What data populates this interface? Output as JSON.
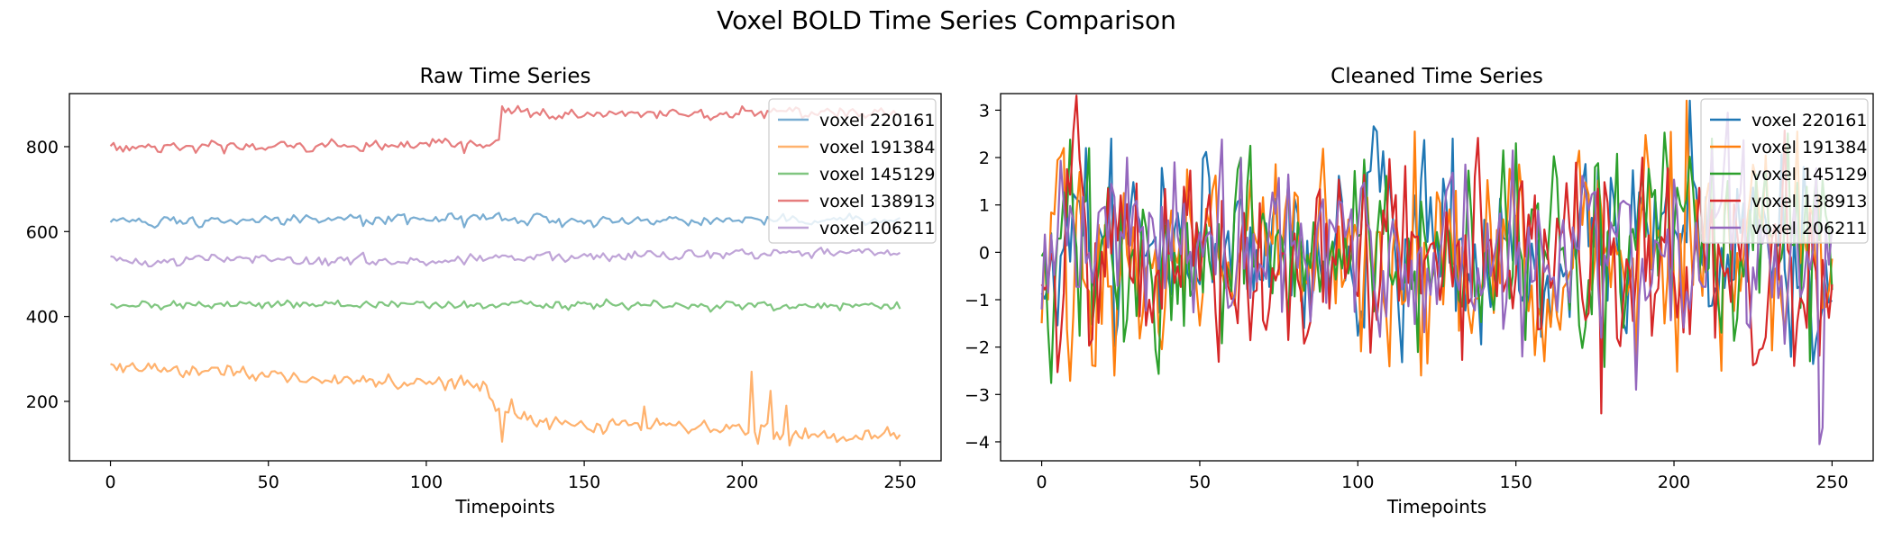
{
  "figure": {
    "title": "Voxel BOLD Time Series Comparison"
  },
  "chart_data": [
    {
      "type": "line",
      "title": "Raw Time Series",
      "xlabel": "Timepoints",
      "ylabel": "",
      "xlim": [
        -13,
        263
      ],
      "ylim": [
        60,
        925
      ],
      "xticks": [
        0,
        50,
        100,
        150,
        200,
        250
      ],
      "yticks": [
        200,
        400,
        600,
        800
      ],
      "line_alpha": 0.6,
      "legend_position": "top-right",
      "series": [
        {
          "name": "voxel 220161",
          "color": "#1f77b4",
          "x_range": [
            0,
            250
          ],
          "trend": [
            [
              0,
              625
            ],
            [
              50,
              625
            ],
            [
              100,
              627
            ],
            [
              120,
              632
            ],
            [
              150,
              625
            ],
            [
              200,
              628
            ],
            [
              250,
              625
            ]
          ],
          "noise": 6,
          "spikes": [
            [
              112,
              610
            ],
            [
              122,
              640
            ],
            [
              79,
              638
            ]
          ]
        },
        {
          "name": "voxel 191384",
          "color": "#ff7f0e",
          "x_range": [
            0,
            250
          ],
          "trend": [
            [
              0,
              280
            ],
            [
              40,
              270
            ],
            [
              55,
              258
            ],
            [
              80,
              250
            ],
            [
              112,
              245
            ],
            [
              118,
              232
            ],
            [
              124,
              168
            ],
            [
              150,
              140
            ],
            [
              170,
              145
            ],
            [
              185,
              140
            ],
            [
              200,
              132
            ],
            [
              220,
              125
            ],
            [
              250,
              118
            ]
          ],
          "noise": 9,
          "spikes": [
            [
              124,
              105
            ],
            [
              127,
              205
            ],
            [
              169,
              188
            ],
            [
              203,
              270
            ],
            [
              205,
              100
            ],
            [
              209,
              225
            ],
            [
              214,
              190
            ],
            [
              215,
              96
            ],
            [
              249,
              112
            ]
          ]
        },
        {
          "name": "voxel 145129",
          "color": "#2ca02c",
          "x_range": [
            0,
            250
          ],
          "trend": [
            [
              0,
              428
            ],
            [
              250,
              425
            ]
          ],
          "noise": 5,
          "spikes": [
            [
              250,
              418
            ]
          ]
        },
        {
          "name": "voxel 138913",
          "color": "#d62728",
          "x_range": [
            0,
            250
          ],
          "trend": [
            [
              0,
              803
            ],
            [
              50,
              800
            ],
            [
              100,
              804
            ],
            [
              123,
              808
            ],
            [
              125,
              880
            ],
            [
              150,
              875
            ],
            [
              200,
              880
            ],
            [
              250,
              882
            ]
          ],
          "noise": 6,
          "spikes": [
            [
              112,
              785
            ],
            [
              124,
              895
            ],
            [
              126,
              890
            ]
          ]
        },
        {
          "name": "voxel 206211",
          "color": "#9467bd",
          "x_range": [
            0,
            250
          ],
          "trend": [
            [
              0,
              535
            ],
            [
              50,
              535
            ],
            [
              100,
              532
            ],
            [
              150,
              540
            ],
            [
              200,
              548
            ],
            [
              250,
              552
            ]
          ],
          "noise": 6,
          "spikes": [
            [
              225,
              562
            ],
            [
              250,
              550
            ]
          ]
        }
      ]
    },
    {
      "type": "line",
      "title": "Cleaned Time Series",
      "xlabel": "Timepoints",
      "ylabel": "",
      "xlim": [
        -13,
        263
      ],
      "ylim": [
        -4.4,
        3.35
      ],
      "xticks": [
        0,
        50,
        100,
        150,
        200,
        250
      ],
      "yticks": [
        -4,
        -3,
        -2,
        -1,
        0,
        1,
        2,
        3
      ],
      "line_alpha": 1.0,
      "legend_position": "top-right",
      "series": [
        {
          "name": "voxel 220161",
          "color": "#1f77b4",
          "x_range": [
            0,
            250
          ],
          "trend": [
            [
              0,
              0
            ],
            [
              250,
              0
            ]
          ],
          "noise": 0.95,
          "spikes": [
            [
              22,
              2.4
            ],
            [
              106,
              2.55
            ],
            [
              130,
              2.4
            ],
            [
              205,
              3.2
            ]
          ]
        },
        {
          "name": "voxel 191384",
          "color": "#ff7f0e",
          "x_range": [
            0,
            250
          ],
          "trend": [
            [
              0,
              0
            ],
            [
              250,
              0
            ]
          ],
          "noise": 1.0,
          "spikes": [
            [
              7,
              2.2
            ],
            [
              118,
              2.55
            ],
            [
              120,
              -2.6
            ],
            [
              204,
              3.2
            ],
            [
              215,
              -2.5
            ]
          ]
        },
        {
          "name": "voxel 145129",
          "color": "#2ca02c",
          "x_range": [
            0,
            250
          ],
          "trend": [
            [
              0,
              0
            ],
            [
              250,
              0
            ]
          ],
          "noise": 0.95,
          "spikes": [
            [
              15,
              2.2
            ],
            [
              150,
              2.3
            ],
            [
              212,
              2.4
            ],
            [
              243,
              -2.3
            ]
          ]
        },
        {
          "name": "voxel 138913",
          "color": "#d62728",
          "x_range": [
            0,
            250
          ],
          "trend": [
            [
              0,
              0
            ],
            [
              250,
              0
            ]
          ],
          "noise": 1.0,
          "spikes": [
            [
              177,
              -3.4
            ],
            [
              238,
              -2.4
            ],
            [
              190,
              2.0
            ]
          ]
        },
        {
          "name": "voxel 206211",
          "color": "#9467bd",
          "x_range": [
            0,
            250
          ],
          "trend": [
            [
              0,
              0
            ],
            [
              250,
              0
            ]
          ],
          "noise": 0.95,
          "spikes": [
            [
              27,
              2.0
            ],
            [
              42,
              1.9
            ],
            [
              152,
              -2.2
            ],
            [
              188,
              -2.9
            ],
            [
              246,
              -4.05
            ],
            [
              247,
              -3.7
            ]
          ]
        }
      ]
    }
  ]
}
